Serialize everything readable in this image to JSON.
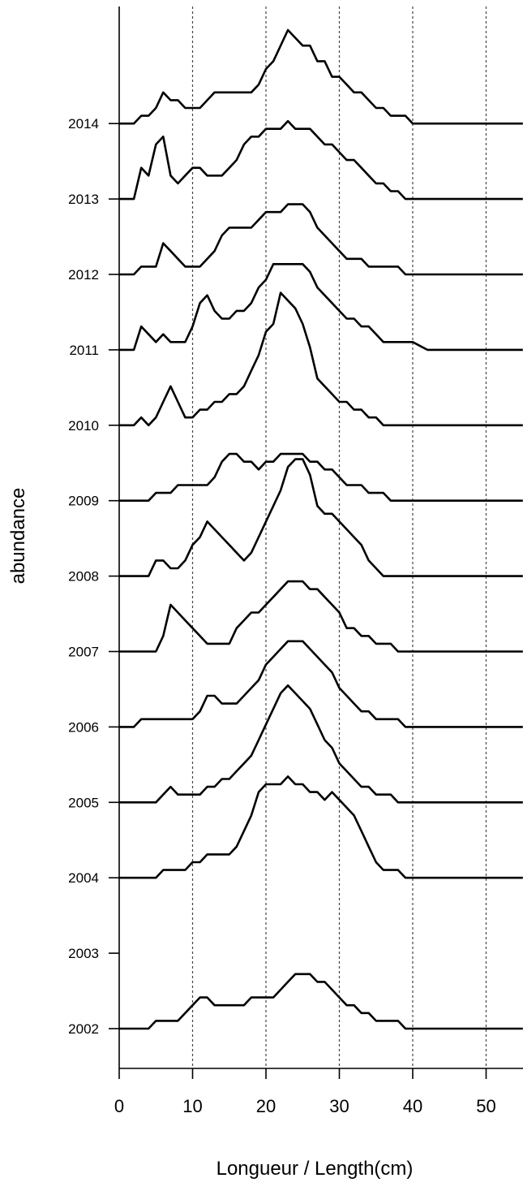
{
  "chart_data": {
    "type": "line",
    "title": "",
    "xlabel": "Longueur / Length(cm)",
    "ylabel": "abundance",
    "xlim": [
      0,
      55
    ],
    "x_ticks": [
      0,
      10,
      20,
      30,
      40,
      50
    ],
    "grid_x": [
      10,
      20,
      30,
      40,
      50
    ],
    "grid_style": "dotted vertical",
    "line_color": "#000000",
    "year_ticks": [
      "2002",
      "2003",
      "2004",
      "2005",
      "2006",
      "2007",
      "2008",
      "2009",
      "2010",
      "2011",
      "2012",
      "2013",
      "2014"
    ],
    "series": [
      {
        "name": "2014",
        "x": [
          0,
          2,
          3,
          4,
          5,
          6,
          7,
          8,
          9,
          10,
          11,
          12,
          13,
          14,
          15,
          16,
          17,
          18,
          19,
          20,
          21,
          22,
          23,
          24,
          25,
          26,
          27,
          28,
          29,
          30,
          31,
          32,
          33,
          34,
          35,
          36,
          37,
          38,
          39,
          40,
          42,
          44,
          46,
          48,
          50,
          55
        ],
        "y": [
          0,
          0,
          1,
          1,
          2,
          4,
          3,
          3,
          2,
          2,
          2,
          3,
          4,
          4,
          4,
          4,
          4,
          4,
          5,
          7,
          8,
          10,
          12,
          11,
          10,
          10,
          8,
          8,
          6,
          6,
          5,
          4,
          4,
          3,
          2,
          2,
          1,
          1,
          1,
          0,
          0,
          0,
          0,
          0,
          0,
          0
        ]
      },
      {
        "name": "2013",
        "x": [
          0,
          1,
          2,
          3,
          4,
          5,
          6,
          7,
          8,
          9,
          10,
          11,
          12,
          13,
          14,
          15,
          16,
          17,
          18,
          19,
          20,
          21,
          22,
          23,
          24,
          25,
          26,
          27,
          28,
          29,
          30,
          31,
          32,
          33,
          34,
          35,
          36,
          37,
          38,
          39,
          40,
          42,
          44,
          46,
          48,
          50,
          55
        ],
        "y": [
          0,
          0,
          0,
          4,
          3,
          7,
          8,
          3,
          2,
          3,
          4,
          4,
          3,
          3,
          3,
          4,
          5,
          7,
          8,
          8,
          9,
          9,
          9,
          10,
          9,
          9,
          9,
          8,
          7,
          7,
          6,
          5,
          5,
          4,
          3,
          2,
          2,
          1,
          1,
          0,
          0,
          0,
          0,
          0,
          0,
          0,
          0
        ]
      },
      {
        "name": "2012",
        "x": [
          0,
          1,
          2,
          3,
          4,
          5,
          6,
          7,
          8,
          9,
          10,
          11,
          12,
          13,
          14,
          15,
          16,
          17,
          18,
          19,
          20,
          21,
          22,
          23,
          24,
          25,
          26,
          27,
          28,
          29,
          30,
          31,
          32,
          33,
          34,
          35,
          36,
          37,
          38,
          39,
          40,
          42,
          44,
          46,
          48,
          50,
          55
        ],
        "y": [
          0,
          0,
          0,
          1,
          1,
          1,
          4,
          3,
          2,
          1,
          1,
          1,
          2,
          3,
          5,
          6,
          6,
          6,
          6,
          7,
          8,
          8,
          8,
          9,
          9,
          9,
          8,
          6,
          5,
          4,
          3,
          2,
          2,
          2,
          1,
          1,
          1,
          1,
          1,
          0,
          0,
          0,
          0,
          0,
          0,
          0,
          0
        ]
      },
      {
        "name": "2011",
        "x": [
          0,
          1,
          2,
          3,
          4,
          5,
          6,
          7,
          8,
          9,
          10,
          11,
          12,
          13,
          14,
          15,
          16,
          17,
          18,
          19,
          20,
          21,
          22,
          23,
          24,
          25,
          26,
          27,
          28,
          29,
          30,
          31,
          32,
          33,
          34,
          35,
          36,
          37,
          38,
          39,
          40,
          42,
          44,
          46,
          48,
          50,
          55
        ],
        "y": [
          0,
          0,
          0,
          3,
          2,
          1,
          2,
          1,
          1,
          1,
          3,
          6,
          7,
          5,
          4,
          4,
          5,
          5,
          6,
          8,
          9,
          11,
          11,
          11,
          11,
          11,
          10,
          8,
          7,
          6,
          5,
          4,
          4,
          3,
          3,
          2,
          1,
          1,
          1,
          1,
          1,
          0,
          0,
          0,
          0,
          0,
          0
        ]
      },
      {
        "name": "2010",
        "x": [
          0,
          1,
          2,
          3,
          4,
          5,
          6,
          7,
          8,
          9,
          10,
          11,
          12,
          13,
          14,
          15,
          16,
          17,
          18,
          19,
          20,
          21,
          22,
          23,
          24,
          25,
          26,
          27,
          28,
          29,
          30,
          31,
          32,
          33,
          34,
          35,
          36,
          37,
          38,
          39,
          40,
          42,
          44,
          46,
          48,
          50,
          55
        ],
        "y": [
          0,
          0,
          0,
          1,
          0,
          1,
          3,
          5,
          3,
          1,
          1,
          2,
          2,
          3,
          3,
          4,
          4,
          5,
          7,
          9,
          12,
          13,
          17,
          16,
          15,
          13,
          10,
          6,
          5,
          4,
          3,
          3,
          2,
          2,
          1,
          1,
          0,
          0,
          0,
          0,
          0,
          0,
          0,
          0,
          0,
          0,
          0
        ]
      },
      {
        "name": "2009",
        "x": [
          0,
          1,
          2,
          3,
          4,
          5,
          6,
          7,
          8,
          9,
          10,
          11,
          12,
          13,
          14,
          15,
          16,
          17,
          18,
          19,
          20,
          21,
          22,
          23,
          24,
          25,
          26,
          27,
          28,
          29,
          30,
          31,
          32,
          33,
          34,
          35,
          36,
          37,
          38,
          39,
          40,
          42,
          44,
          46,
          48,
          50,
          55
        ],
        "y": [
          0,
          0,
          0,
          0,
          0,
          1,
          1,
          1,
          2,
          2,
          2,
          2,
          2,
          3,
          5,
          6,
          6,
          5,
          5,
          4,
          5,
          5,
          6,
          6,
          6,
          6,
          5,
          5,
          4,
          4,
          3,
          2,
          2,
          2,
          1,
          1,
          1,
          0,
          0,
          0,
          0,
          0,
          0,
          0,
          0,
          0,
          0
        ]
      },
      {
        "name": "2008",
        "x": [
          0,
          1,
          2,
          3,
          4,
          5,
          6,
          7,
          8,
          9,
          10,
          11,
          12,
          13,
          14,
          15,
          16,
          17,
          18,
          19,
          20,
          21,
          22,
          23,
          24,
          25,
          26,
          27,
          28,
          29,
          30,
          31,
          32,
          33,
          34,
          35,
          36,
          37,
          38,
          39,
          40,
          42,
          44,
          46,
          48,
          50,
          55
        ],
        "y": [
          0,
          0,
          0,
          0,
          0,
          2,
          2,
          1,
          1,
          2,
          4,
          5,
          7,
          6,
          5,
          4,
          3,
          2,
          3,
          5,
          7,
          9,
          11,
          14,
          15,
          15,
          13,
          9,
          8,
          8,
          7,
          6,
          5,
          4,
          2,
          1,
          0,
          0,
          0,
          0,
          0,
          0,
          0,
          0,
          0,
          0,
          0
        ]
      },
      {
        "name": "2007",
        "x": [
          0,
          1,
          2,
          3,
          4,
          5,
          6,
          7,
          8,
          9,
          10,
          11,
          12,
          13,
          14,
          15,
          16,
          17,
          18,
          19,
          20,
          21,
          22,
          23,
          24,
          25,
          26,
          27,
          28,
          29,
          30,
          31,
          32,
          33,
          34,
          35,
          36,
          37,
          38,
          39,
          40,
          42,
          44,
          46,
          48,
          50,
          55
        ],
        "y": [
          0,
          0,
          0,
          0,
          0,
          0,
          2,
          6,
          5,
          4,
          3,
          2,
          1,
          1,
          1,
          1,
          3,
          4,
          5,
          5,
          6,
          7,
          8,
          9,
          9,
          9,
          8,
          8,
          7,
          6,
          5,
          3,
          3,
          2,
          2,
          1,
          1,
          1,
          0,
          0,
          0,
          0,
          0,
          0,
          0,
          0,
          0
        ]
      },
      {
        "name": "2006",
        "x": [
          0,
          1,
          2,
          3,
          4,
          5,
          6,
          7,
          8,
          9,
          10,
          11,
          12,
          13,
          14,
          15,
          16,
          17,
          18,
          19,
          20,
          21,
          22,
          23,
          24,
          25,
          26,
          27,
          28,
          29,
          30,
          31,
          32,
          33,
          34,
          35,
          36,
          37,
          38,
          39,
          40,
          42,
          44,
          46,
          48,
          50,
          55
        ],
        "y": [
          0,
          0,
          0,
          1,
          1,
          1,
          1,
          1,
          1,
          1,
          1,
          2,
          4,
          4,
          3,
          3,
          3,
          4,
          5,
          6,
          8,
          9,
          10,
          11,
          11,
          11,
          10,
          9,
          8,
          7,
          5,
          4,
          3,
          2,
          2,
          1,
          1,
          1,
          1,
          0,
          0,
          0,
          0,
          0,
          0,
          0,
          0
        ]
      },
      {
        "name": "2005",
        "x": [
          0,
          1,
          2,
          3,
          4,
          5,
          6,
          7,
          8,
          9,
          10,
          11,
          12,
          13,
          14,
          15,
          16,
          17,
          18,
          19,
          20,
          21,
          22,
          23,
          24,
          25,
          26,
          27,
          28,
          29,
          30,
          31,
          32,
          33,
          34,
          35,
          36,
          37,
          38,
          39,
          40,
          42,
          44,
          46,
          48,
          50,
          55
        ],
        "y": [
          0,
          0,
          0,
          0,
          0,
          0,
          1,
          2,
          1,
          1,
          1,
          1,
          2,
          2,
          3,
          3,
          4,
          5,
          6,
          8,
          10,
          12,
          14,
          15,
          14,
          13,
          12,
          10,
          8,
          7,
          5,
          4,
          3,
          2,
          2,
          1,
          1,
          1,
          0,
          0,
          0,
          0,
          0,
          0,
          0,
          0,
          0
        ]
      },
      {
        "name": "2004",
        "x": [
          0,
          1,
          2,
          3,
          4,
          5,
          6,
          7,
          8,
          9,
          10,
          11,
          12,
          13,
          14,
          15,
          16,
          17,
          18,
          19,
          20,
          21,
          22,
          23,
          24,
          25,
          26,
          27,
          28,
          29,
          30,
          31,
          32,
          33,
          34,
          35,
          36,
          37,
          38,
          39,
          40,
          42,
          44,
          46,
          48,
          50,
          55
        ],
        "y": [
          0,
          0,
          0,
          0,
          0,
          0,
          1,
          1,
          1,
          1,
          2,
          2,
          3,
          3,
          3,
          3,
          4,
          6,
          8,
          11,
          12,
          12,
          12,
          13,
          12,
          12,
          11,
          11,
          10,
          11,
          10,
          9,
          8,
          6,
          4,
          2,
          1,
          1,
          1,
          0,
          0,
          0,
          0,
          0,
          0,
          0,
          0
        ]
      },
      {
        "name": "2003",
        "x": [],
        "y": []
      },
      {
        "name": "2002",
        "x": [
          0,
          1,
          2,
          3,
          4,
          5,
          6,
          7,
          8,
          9,
          10,
          11,
          12,
          13,
          14,
          15,
          16,
          17,
          18,
          19,
          20,
          21,
          22,
          23,
          24,
          25,
          26,
          27,
          28,
          29,
          30,
          31,
          32,
          33,
          34,
          35,
          36,
          37,
          38,
          39,
          40,
          42,
          44,
          46,
          48,
          50,
          55
        ],
        "y": [
          0,
          0,
          0,
          0,
          0,
          1,
          1,
          1,
          1,
          2,
          3,
          4,
          4,
          3,
          3,
          3,
          3,
          3,
          4,
          4,
          4,
          4,
          5,
          6,
          7,
          7,
          7,
          6,
          6,
          5,
          4,
          3,
          3,
          2,
          2,
          1,
          1,
          1,
          1,
          0,
          0,
          0,
          0,
          0,
          0,
          0,
          0
        ]
      }
    ]
  }
}
